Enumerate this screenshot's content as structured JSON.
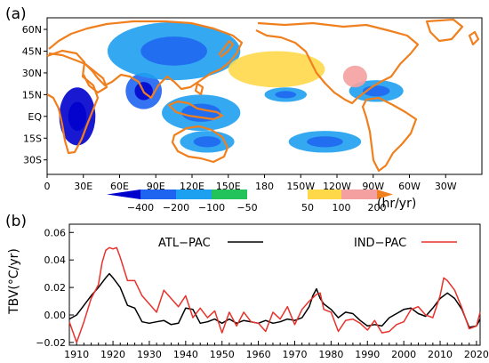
{
  "chart_data": [
    {
      "type": "heatmap",
      "panel_label": "(a)",
      "colors": {
        "land_outline": "#f07f1e",
        "ocean": "#ffffff"
      },
      "x_ticks": [
        "0",
        "30E",
        "60E",
        "90E",
        "120E",
        "150E",
        "180",
        "150W",
        "120W",
        "90W",
        "60W",
        "30W"
      ],
      "y_ticks": [
        "60N",
        "45N",
        "30N",
        "15N",
        "EQ",
        "15S",
        "30S"
      ],
      "xlim": [
        0,
        360
      ],
      "ylim": [
        -40,
        68
      ],
      "colorbar": {
        "labels": [
          "−400",
          "−200",
          "−100",
          "−50",
          "50",
          "100",
          "200"
        ],
        "unit": "(hr/yr)",
        "bins": [
          {
            "range": "<-400",
            "color": "#0000cd"
          },
          {
            "range": "-400 to -200",
            "color": "#1e64f0"
          },
          {
            "range": "-200 to -100",
            "color": "#1ea0f0"
          },
          {
            "range": "-100 to -50",
            "color": "#22c35a"
          },
          {
            "range": "-50 to 50",
            "color": "#ffffff"
          },
          {
            "range": "50 to 100",
            "color": "#ffd84a"
          },
          {
            "range": "100 to 200",
            "color": "#f4a0a0"
          },
          {
            "range": ">200",
            "color": "#f07f1e"
          }
        ]
      },
      "regions": [
        {
          "name": "central Africa",
          "value": -420,
          "lon": [
            10,
            40
          ],
          "lat": [
            -20,
            20
          ]
        },
        {
          "name": "Indian subcontinent",
          "value": -300,
          "lon": [
            65,
            95
          ],
          "lat": [
            5,
            30
          ]
        },
        {
          "name": "Central Asia",
          "value": -200,
          "lon": [
            50,
            160
          ],
          "lat": [
            25,
            65
          ]
        },
        {
          "name": "Maritime Continent",
          "value": -150,
          "lon": [
            95,
            160
          ],
          "lat": [
            -10,
            15
          ]
        },
        {
          "name": "northern Australia",
          "value": -200,
          "lon": [
            110,
            155
          ],
          "lat": [
            -25,
            -10
          ]
        },
        {
          "name": "central Pacific",
          "value": -200,
          "lon": [
            180,
            215
          ],
          "lat": [
            10,
            20
          ]
        },
        {
          "name": "Southeast Pacific",
          "value": -150,
          "lon": [
            200,
            260
          ],
          "lat": [
            -25,
            -10
          ]
        },
        {
          "name": "Central America",
          "value": -200,
          "lon": [
            250,
            295
          ],
          "lat": [
            10,
            25
          ]
        },
        {
          "name": "North Pacific",
          "value": 75,
          "lon": [
            150,
            230
          ],
          "lat": [
            20,
            45
          ]
        },
        {
          "name": "Mexico",
          "value": 150,
          "lon": [
            245,
            265
          ],
          "lat": [
            20,
            35
          ]
        }
      ]
    },
    {
      "type": "line",
      "panel_label": "(b)",
      "ylabel": "TBV(°C/yr)",
      "xlabel": "",
      "xlim": [
        1908,
        2021
      ],
      "ylim": [
        -0.022,
        0.066
      ],
      "x_ticks": [
        1910,
        1920,
        1930,
        1940,
        1950,
        1960,
        1970,
        1980,
        1990,
        2000,
        2010,
        2020
      ],
      "y_ticks": [
        -0.02,
        0.0,
        0.02,
        0.04,
        0.06
      ],
      "y_tick_labels": [
        "−0.02",
        "0.00",
        "0.02",
        "0.04",
        "0.06"
      ],
      "grid": false,
      "legend_placement": "top",
      "series": [
        {
          "name": "ATL−PAC",
          "color": "#000000",
          "x": [
            1908,
            1910,
            1912,
            1914,
            1916,
            1918,
            1919,
            1920,
            1922,
            1924,
            1926,
            1928,
            1930,
            1932,
            1934,
            1936,
            1938,
            1940,
            1942,
            1944,
            1946,
            1948,
            1950,
            1952,
            1954,
            1956,
            1958,
            1960,
            1962,
            1964,
            1966,
            1968,
            1970,
            1972,
            1974,
            1975,
            1976,
            1977,
            1978,
            1980,
            1982,
            1984,
            1986,
            1988,
            1990,
            1992,
            1994,
            1996,
            1998,
            2000,
            2002,
            2004,
            2006,
            2008,
            2010,
            2012,
            2014,
            2016,
            2018,
            2020,
            2021
          ],
          "values": [
            -0.003,
            0.0,
            0.007,
            0.014,
            0.02,
            0.027,
            0.03,
            0.027,
            0.02,
            0.007,
            0.005,
            -0.005,
            -0.006,
            -0.005,
            -0.004,
            -0.007,
            -0.006,
            0.005,
            0.004,
            -0.006,
            -0.005,
            -0.003,
            -0.006,
            -0.003,
            -0.006,
            -0.004,
            -0.005,
            -0.006,
            -0.004,
            -0.006,
            -0.005,
            -0.003,
            -0.004,
            -0.002,
            0.006,
            0.014,
            0.019,
            0.012,
            0.008,
            0.004,
            -0.002,
            0.002,
            0.001,
            -0.004,
            -0.008,
            -0.007,
            -0.008,
            -0.002,
            0.001,
            0.004,
            0.005,
            0.001,
            -0.001,
            0.005,
            0.012,
            0.016,
            0.012,
            0.004,
            -0.009,
            -0.008,
            -0.003
          ]
        },
        {
          "name": "IND−PAC",
          "color": "#e8322c",
          "x": [
            1908,
            1910,
            1912,
            1914,
            1916,
            1917,
            1918,
            1919,
            1920,
            1921,
            1922,
            1924,
            1926,
            1928,
            1930,
            1932,
            1934,
            1936,
            1938,
            1940,
            1942,
            1944,
            1946,
            1948,
            1950,
            1952,
            1954,
            1956,
            1958,
            1960,
            1962,
            1964,
            1966,
            1968,
            1970,
            1972,
            1974,
            1976,
            1977,
            1978,
            1980,
            1982,
            1984,
            1986,
            1988,
            1990,
            1992,
            1994,
            1996,
            1998,
            2000,
            2002,
            2004,
            2006,
            2008,
            2010,
            2011,
            2012,
            2014,
            2016,
            2018,
            2020,
            2021
          ],
          "values": [
            -0.005,
            -0.02,
            -0.005,
            0.012,
            0.022,
            0.038,
            0.047,
            0.049,
            0.048,
            0.049,
            0.042,
            0.025,
            0.025,
            0.014,
            0.008,
            0.002,
            0.018,
            0.012,
            0.006,
            0.014,
            -0.002,
            0.005,
            -0.002,
            0.003,
            -0.013,
            0.002,
            -0.008,
            0.002,
            -0.005,
            -0.006,
            -0.012,
            0.002,
            -0.003,
            0.006,
            -0.007,
            0.004,
            0.01,
            0.015,
            0.016,
            0.004,
            0.002,
            -0.012,
            -0.004,
            -0.003,
            -0.006,
            -0.011,
            -0.004,
            -0.013,
            -0.012,
            -0.007,
            -0.005,
            0.004,
            0.006,
            0.0,
            -0.002,
            0.014,
            0.027,
            0.025,
            0.018,
            0.005,
            -0.01,
            -0.008,
            0.002
          ]
        }
      ]
    }
  ]
}
